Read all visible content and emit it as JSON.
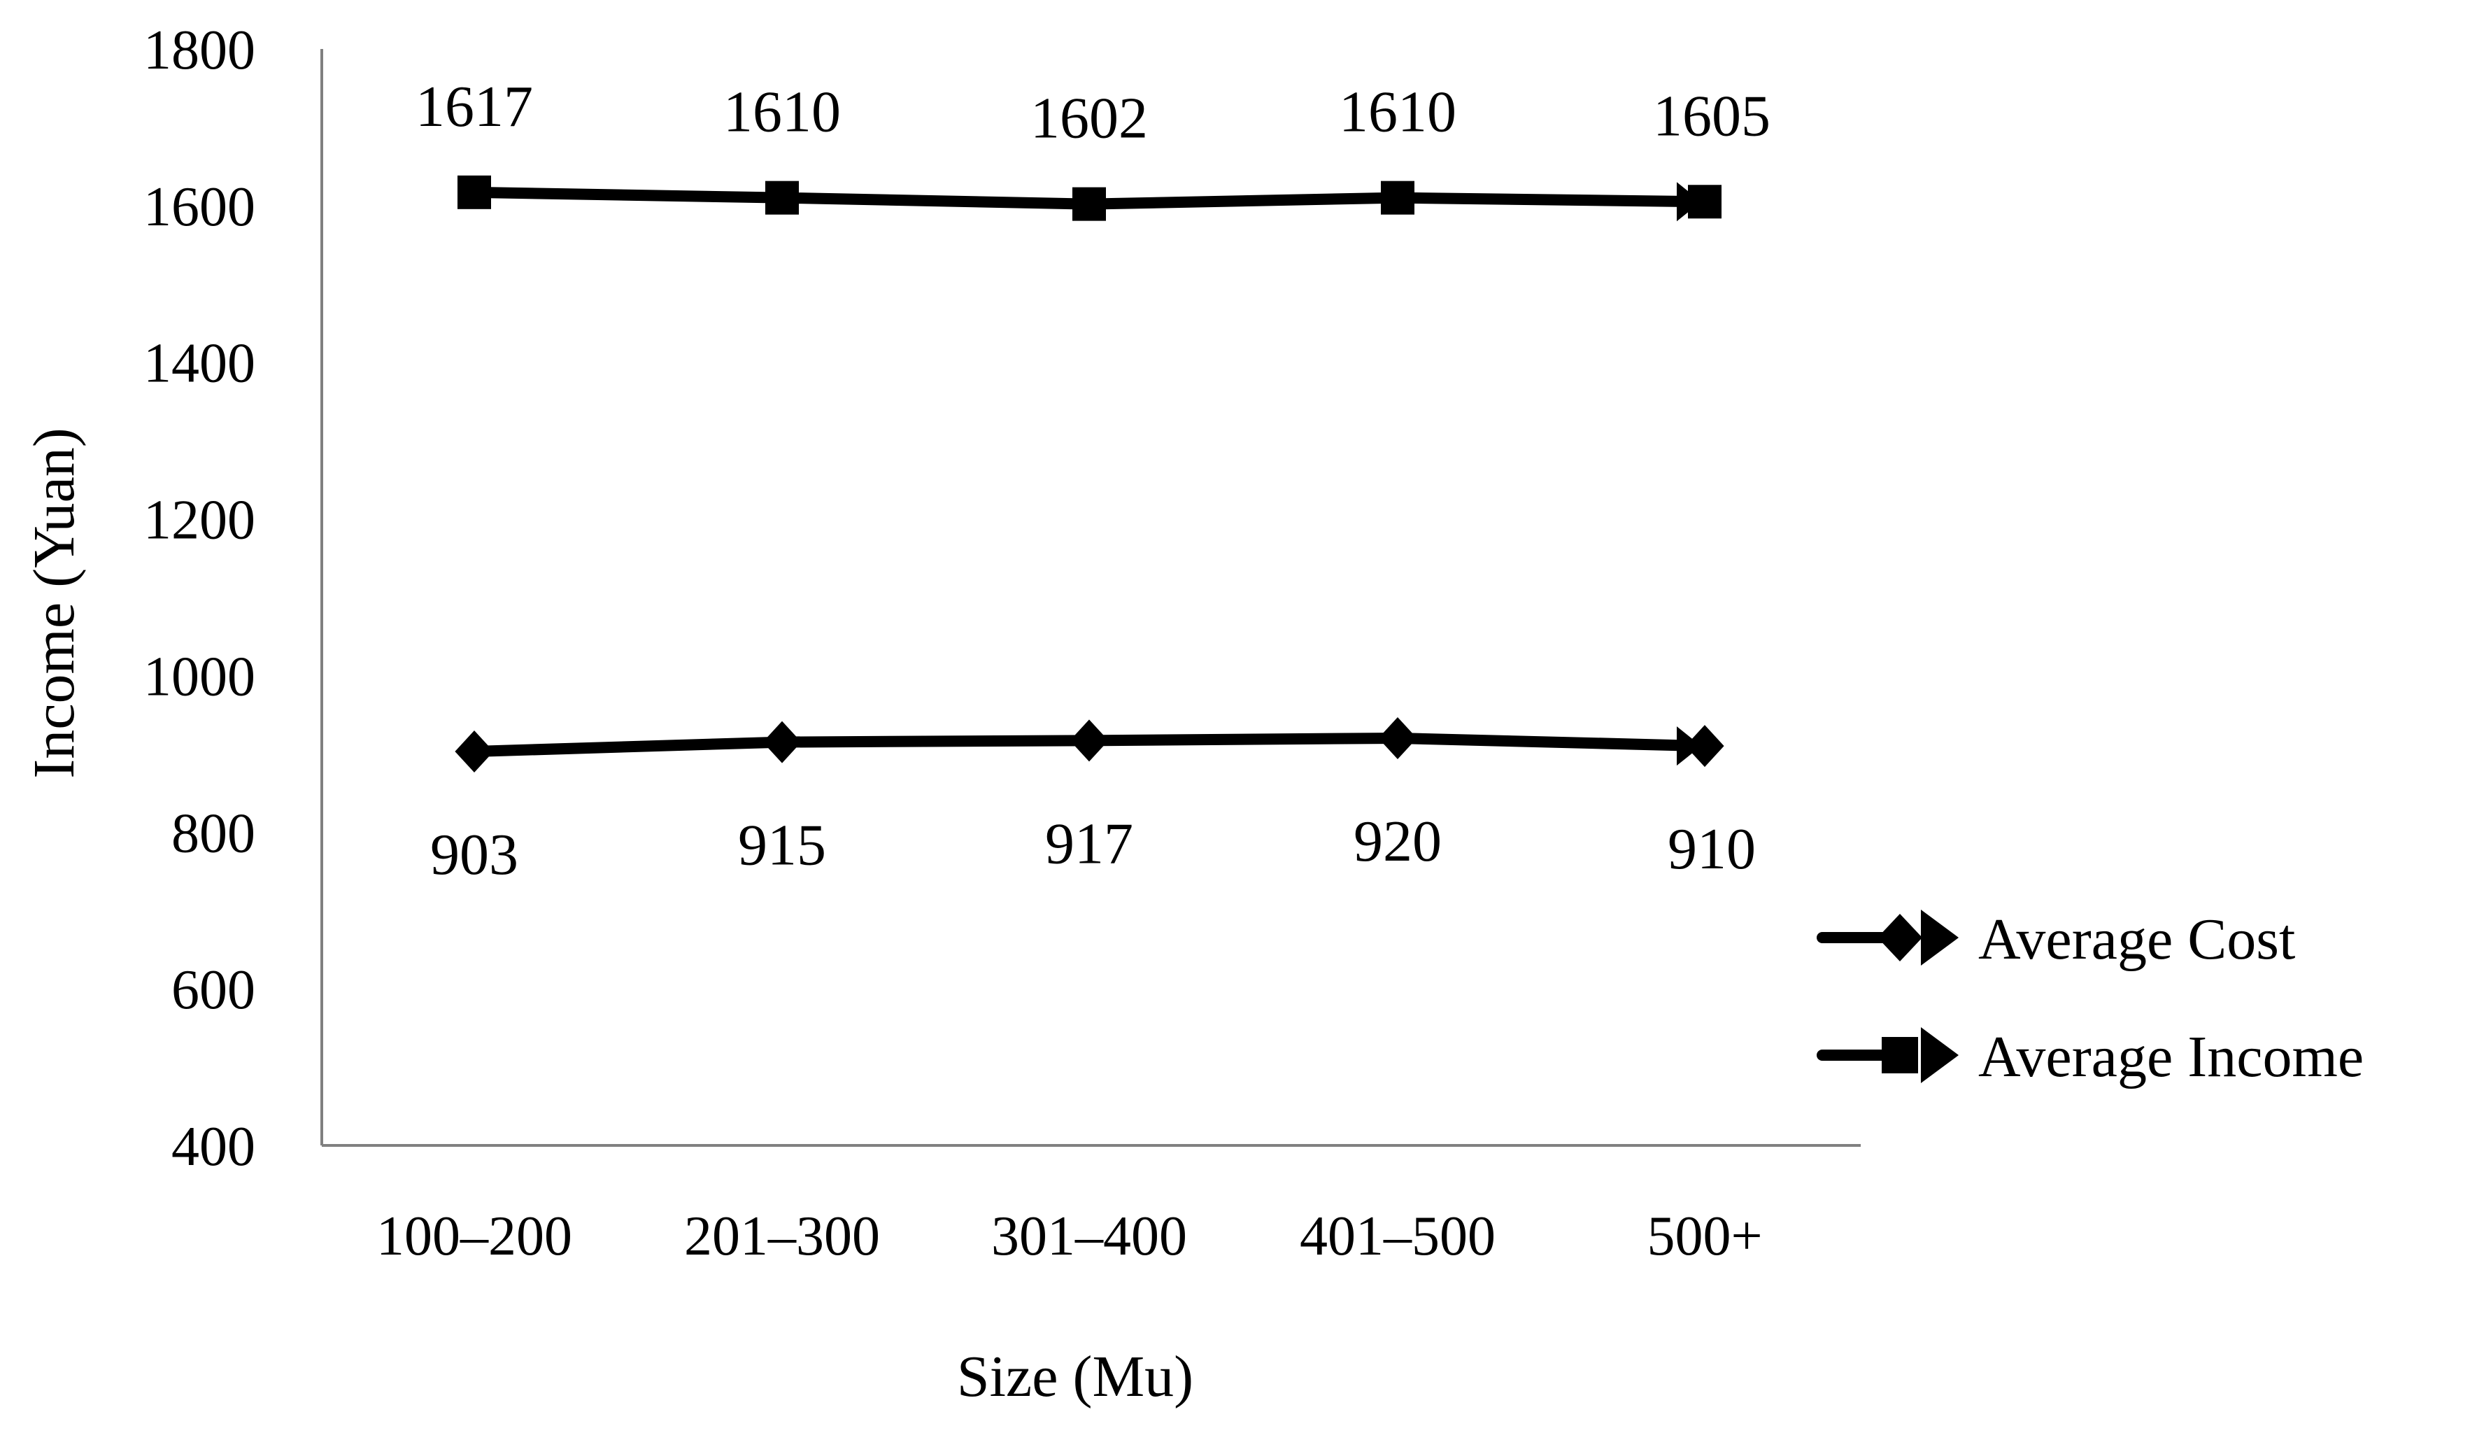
{
  "chart_data": {
    "type": "line",
    "title": "",
    "xlabel": "Size (Mu)",
    "ylabel": "Income (Yuan)",
    "categories": [
      "100–200",
      "201–300",
      "301–400",
      "401–500",
      "500+"
    ],
    "ylim": [
      400,
      1800
    ],
    "yticks": [
      400,
      600,
      800,
      1000,
      1200,
      1400,
      1600,
      1800
    ],
    "grid": false,
    "legend_position": "right",
    "series": [
      {
        "name": "Average Cost",
        "marker": "diamond",
        "color": "#000000",
        "label_position": "below",
        "values": [
          903,
          915,
          917,
          920,
          910
        ],
        "data_labels": [
          "903",
          "915",
          "917",
          "920",
          "910"
        ]
      },
      {
        "name": "Average Income",
        "marker": "square",
        "color": "#000000",
        "label_position": "above",
        "values": [
          1617,
          1610,
          1602,
          1610,
          1605
        ],
        "data_labels": [
          "1617",
          "1610",
          "1602",
          "1610",
          "1605"
        ]
      }
    ]
  }
}
